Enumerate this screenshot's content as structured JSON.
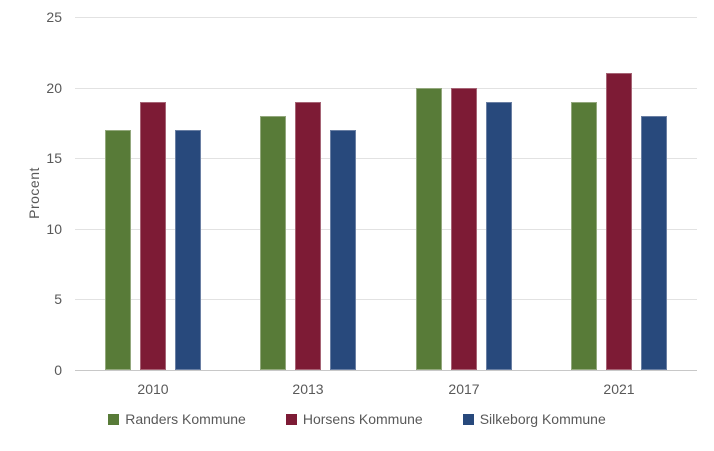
{
  "chart_data": {
    "type": "bar",
    "title": "",
    "xlabel": "",
    "ylabel": "Procent",
    "categories": [
      "2010",
      "2013",
      "2017",
      "2021"
    ],
    "series": [
      {
        "name": "Randers Kommune",
        "color": "#587B38",
        "border_color": "#93a87d",
        "values": [
          17,
          18,
          20,
          19
        ]
      },
      {
        "name": "Horsens Kommune",
        "color": "#7D1B35",
        "border_color": "#a66475",
        "values": [
          19,
          19,
          20,
          21
        ]
      },
      {
        "name": "Silkeborg Kommune",
        "color": "#28497C",
        "border_color": "#6a7fa3",
        "values": [
          17,
          17,
          19,
          18
        ]
      }
    ],
    "ylim": [
      0,
      25
    ],
    "yticks": [
      0,
      5,
      10,
      15,
      20,
      25
    ],
    "grid": true,
    "legend_position": "bottom"
  }
}
